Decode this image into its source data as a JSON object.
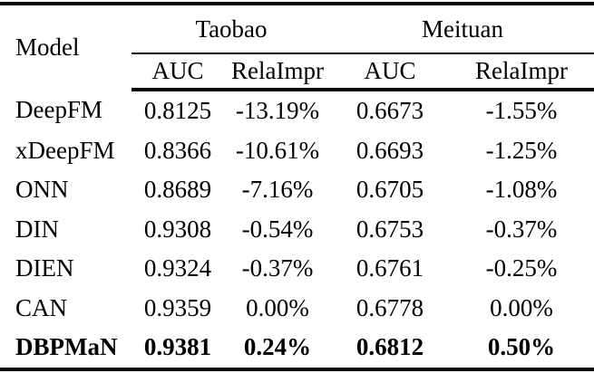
{
  "table": {
    "model_header": "Model",
    "groups": [
      {
        "label": "Taobao",
        "columns": [
          "AUC",
          "RelaImpr"
        ]
      },
      {
        "label": "Meituan",
        "columns": [
          "AUC",
          "RelaImpr"
        ]
      }
    ],
    "rows": [
      {
        "model": "DeepFM",
        "values": [
          "0.8125",
          "-13.19%",
          "0.6673",
          "-1.55%"
        ],
        "bold": false
      },
      {
        "model": "xDeepFM",
        "values": [
          "0.8366",
          "-10.61%",
          "0.6693",
          "-1.25%"
        ],
        "bold": false
      },
      {
        "model": "ONN",
        "values": [
          "0.8689",
          "-7.16%",
          "0.6705",
          "-1.08%"
        ],
        "bold": false
      },
      {
        "model": "DIN",
        "values": [
          "0.9308",
          "-0.54%",
          "0.6753",
          "-0.37%"
        ],
        "bold": false
      },
      {
        "model": "DIEN",
        "values": [
          "0.9324",
          "-0.37%",
          "0.6761",
          "-0.25%"
        ],
        "bold": false
      },
      {
        "model": "CAN",
        "values": [
          "0.9359",
          "0.00%",
          "0.6778",
          "0.00%"
        ],
        "bold": false
      },
      {
        "model": "DBPMaN",
        "values": [
          "0.9381",
          "0.24%",
          "0.6812",
          "0.50%"
        ],
        "bold": true
      }
    ],
    "colors": {
      "text": "#000000",
      "background": "#ffffff",
      "rule": "#000000"
    }
  }
}
